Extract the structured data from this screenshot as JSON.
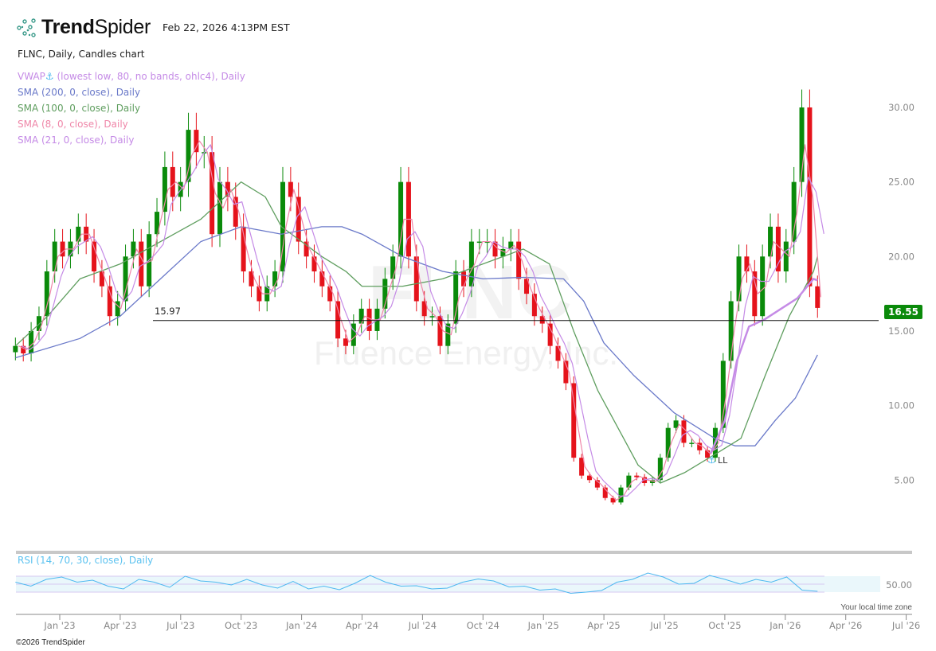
{
  "header": {
    "logo_bold": "Trend",
    "logo_light": "Spider",
    "timestamp": "Feb 22, 2026 4:13PM EST",
    "subtitle": "FLNC, Daily, Candles chart"
  },
  "legend": [
    {
      "label": "VWAP",
      "anchor_icon": "anchor-icon",
      "rest": " (lowest low, 80, no bands, ohlc4), Daily",
      "color": "#c58be6"
    },
    {
      "label": "SMA (200, 0, close), Daily",
      "color": "#6a79c9"
    },
    {
      "label": "SMA (100, 0, close), Daily",
      "color": "#5f9e5f"
    },
    {
      "label": "SMA (8, 0, close), Daily",
      "color": "#ef86a8"
    },
    {
      "label": "SMA (21, 0, close), Daily",
      "color": "#c58be6"
    }
  ],
  "watermark": {
    "ticker": "FLNC",
    "company": "Fluence Energy, Inc."
  },
  "current_price": "16.55",
  "level_line": {
    "label": "15.97",
    "value": 15.97
  },
  "anchor_marker": "LL",
  "rsi": {
    "title": "RSI (14, 70, 30, close), Daily",
    "level_label": "50.00"
  },
  "timezone_note": "Your local time zone",
  "copyright": "©2026 TrendSpider",
  "colors": {
    "up": "#0a8a0a",
    "down": "#e5131b",
    "rsi": "#4db8f0",
    "accent": "#0a8a0a"
  },
  "chart_data": {
    "type": "candlestick",
    "ticker": "FLNC",
    "title": "FLNC, Daily, Candles chart",
    "ylim": [
      1.5,
      33.5
    ],
    "yticks": [
      "5.00",
      "10.00",
      "15.00",
      "20.00",
      "25.00",
      "30.00"
    ],
    "xticks": [
      "Jan '23",
      "Apr '23",
      "Jul '23",
      "Oct '23",
      "Jan '24",
      "Apr '24",
      "Jul '24",
      "Oct '24",
      "Jan '25",
      "Apr '25",
      "Jul '25",
      "Oct '25",
      "Jan '26",
      "Apr '26",
      "Jul '26"
    ],
    "x_start_month": -2.2,
    "x_end_month": 37.6,
    "closes": [
      14,
      13.5,
      15,
      16,
      19,
      21,
      20,
      21,
      22,
      21,
      19,
      18,
      16,
      17,
      20,
      21,
      18,
      21.5,
      23,
      26,
      24,
      25,
      28.5,
      27,
      27,
      21.5,
      25,
      24,
      22,
      19,
      18,
      17,
      18,
      19,
      25,
      24,
      21,
      20,
      19,
      18,
      17,
      14.5,
      14,
      15.5,
      16.5,
      15,
      16.5,
      18.5,
      20,
      25,
      20,
      17,
      16,
      16,
      14,
      15.5,
      19,
      18,
      21,
      21,
      21,
      20,
      20.5,
      21,
      18.5,
      17.5,
      16,
      15.5,
      14,
      13,
      11.5,
      6.5,
      5.3,
      5,
      4.5,
      3.8,
      3.5,
      4.5,
      5.3,
      5.2,
      4.8,
      5,
      6.5,
      8.5,
      9,
      7.5,
      7.5,
      7,
      6.5,
      8.5,
      13,
      17,
      20,
      19,
      16,
      20,
      22,
      19,
      21,
      25,
      30,
      18,
      16.55
    ],
    "sma200": [
      [
        -2.2,
        13.2
      ],
      [
        1,
        14.5
      ],
      [
        3,
        16
      ],
      [
        5,
        18.5
      ],
      [
        7,
        21
      ],
      [
        9,
        22
      ],
      [
        11,
        21.5
      ],
      [
        13,
        22
      ],
      [
        14,
        22
      ],
      [
        15,
        21.5
      ],
      [
        17,
        20
      ],
      [
        19,
        19
      ],
      [
        21,
        18.5
      ],
      [
        23,
        18.6
      ],
      [
        25,
        18.5
      ],
      [
        26,
        17
      ],
      [
        27,
        14.2
      ],
      [
        28.5,
        12
      ],
      [
        30.5,
        9.5
      ],
      [
        32.5,
        7.8
      ],
      [
        33.5,
        7.3
      ],
      [
        34.5,
        7.3
      ],
      [
        35.5,
        9
      ],
      [
        36.5,
        10.5
      ],
      [
        37.6,
        13.4
      ]
    ],
    "sma100": [
      [
        -2.2,
        14
      ],
      [
        -0.6,
        16
      ],
      [
        1,
        18.5
      ],
      [
        3,
        19.5
      ],
      [
        5,
        21
      ],
      [
        7,
        22.5
      ],
      [
        9,
        25
      ],
      [
        10.2,
        24
      ],
      [
        11,
        22
      ],
      [
        13,
        20
      ],
      [
        14.2,
        19
      ],
      [
        15,
        18
      ],
      [
        17,
        18
      ],
      [
        19,
        18.5
      ],
      [
        21,
        19.5
      ],
      [
        23,
        20.5
      ],
      [
        24.3,
        19.5
      ],
      [
        25.5,
        15
      ],
      [
        26.7,
        11
      ],
      [
        28.7,
        6
      ],
      [
        29.8,
        4.8
      ],
      [
        31,
        5.5
      ],
      [
        32.6,
        6.8
      ],
      [
        33.8,
        7.8
      ],
      [
        35,
        12
      ],
      [
        36.2,
        16
      ],
      [
        37.4,
        19
      ],
      [
        37.6,
        20
      ]
    ],
    "vwap_anchored": [
      [
        32.3,
        6.8
      ],
      [
        33,
        9
      ],
      [
        33.6,
        13
      ],
      [
        34.2,
        15.3
      ],
      [
        35,
        15.8
      ],
      [
        35.8,
        16.5
      ],
      [
        36.6,
        17.2
      ],
      [
        37.4,
        18.5
      ],
      [
        37.6,
        18.4
      ]
    ],
    "rsi_values": [
      55,
      45,
      62,
      68,
      55,
      60,
      45,
      38,
      62,
      55,
      42,
      70,
      58,
      55,
      48,
      62,
      48,
      40,
      57,
      38,
      45,
      36,
      52,
      72,
      55,
      45,
      46,
      38,
      40,
      55,
      63,
      58,
      43,
      45,
      35,
      38,
      27,
      30,
      34,
      55,
      62,
      78,
      68,
      50,
      52,
      72,
      62,
      50,
      62,
      55,
      68,
      35,
      32
    ],
    "rsi_levels": [
      30,
      50,
      70
    ]
  }
}
